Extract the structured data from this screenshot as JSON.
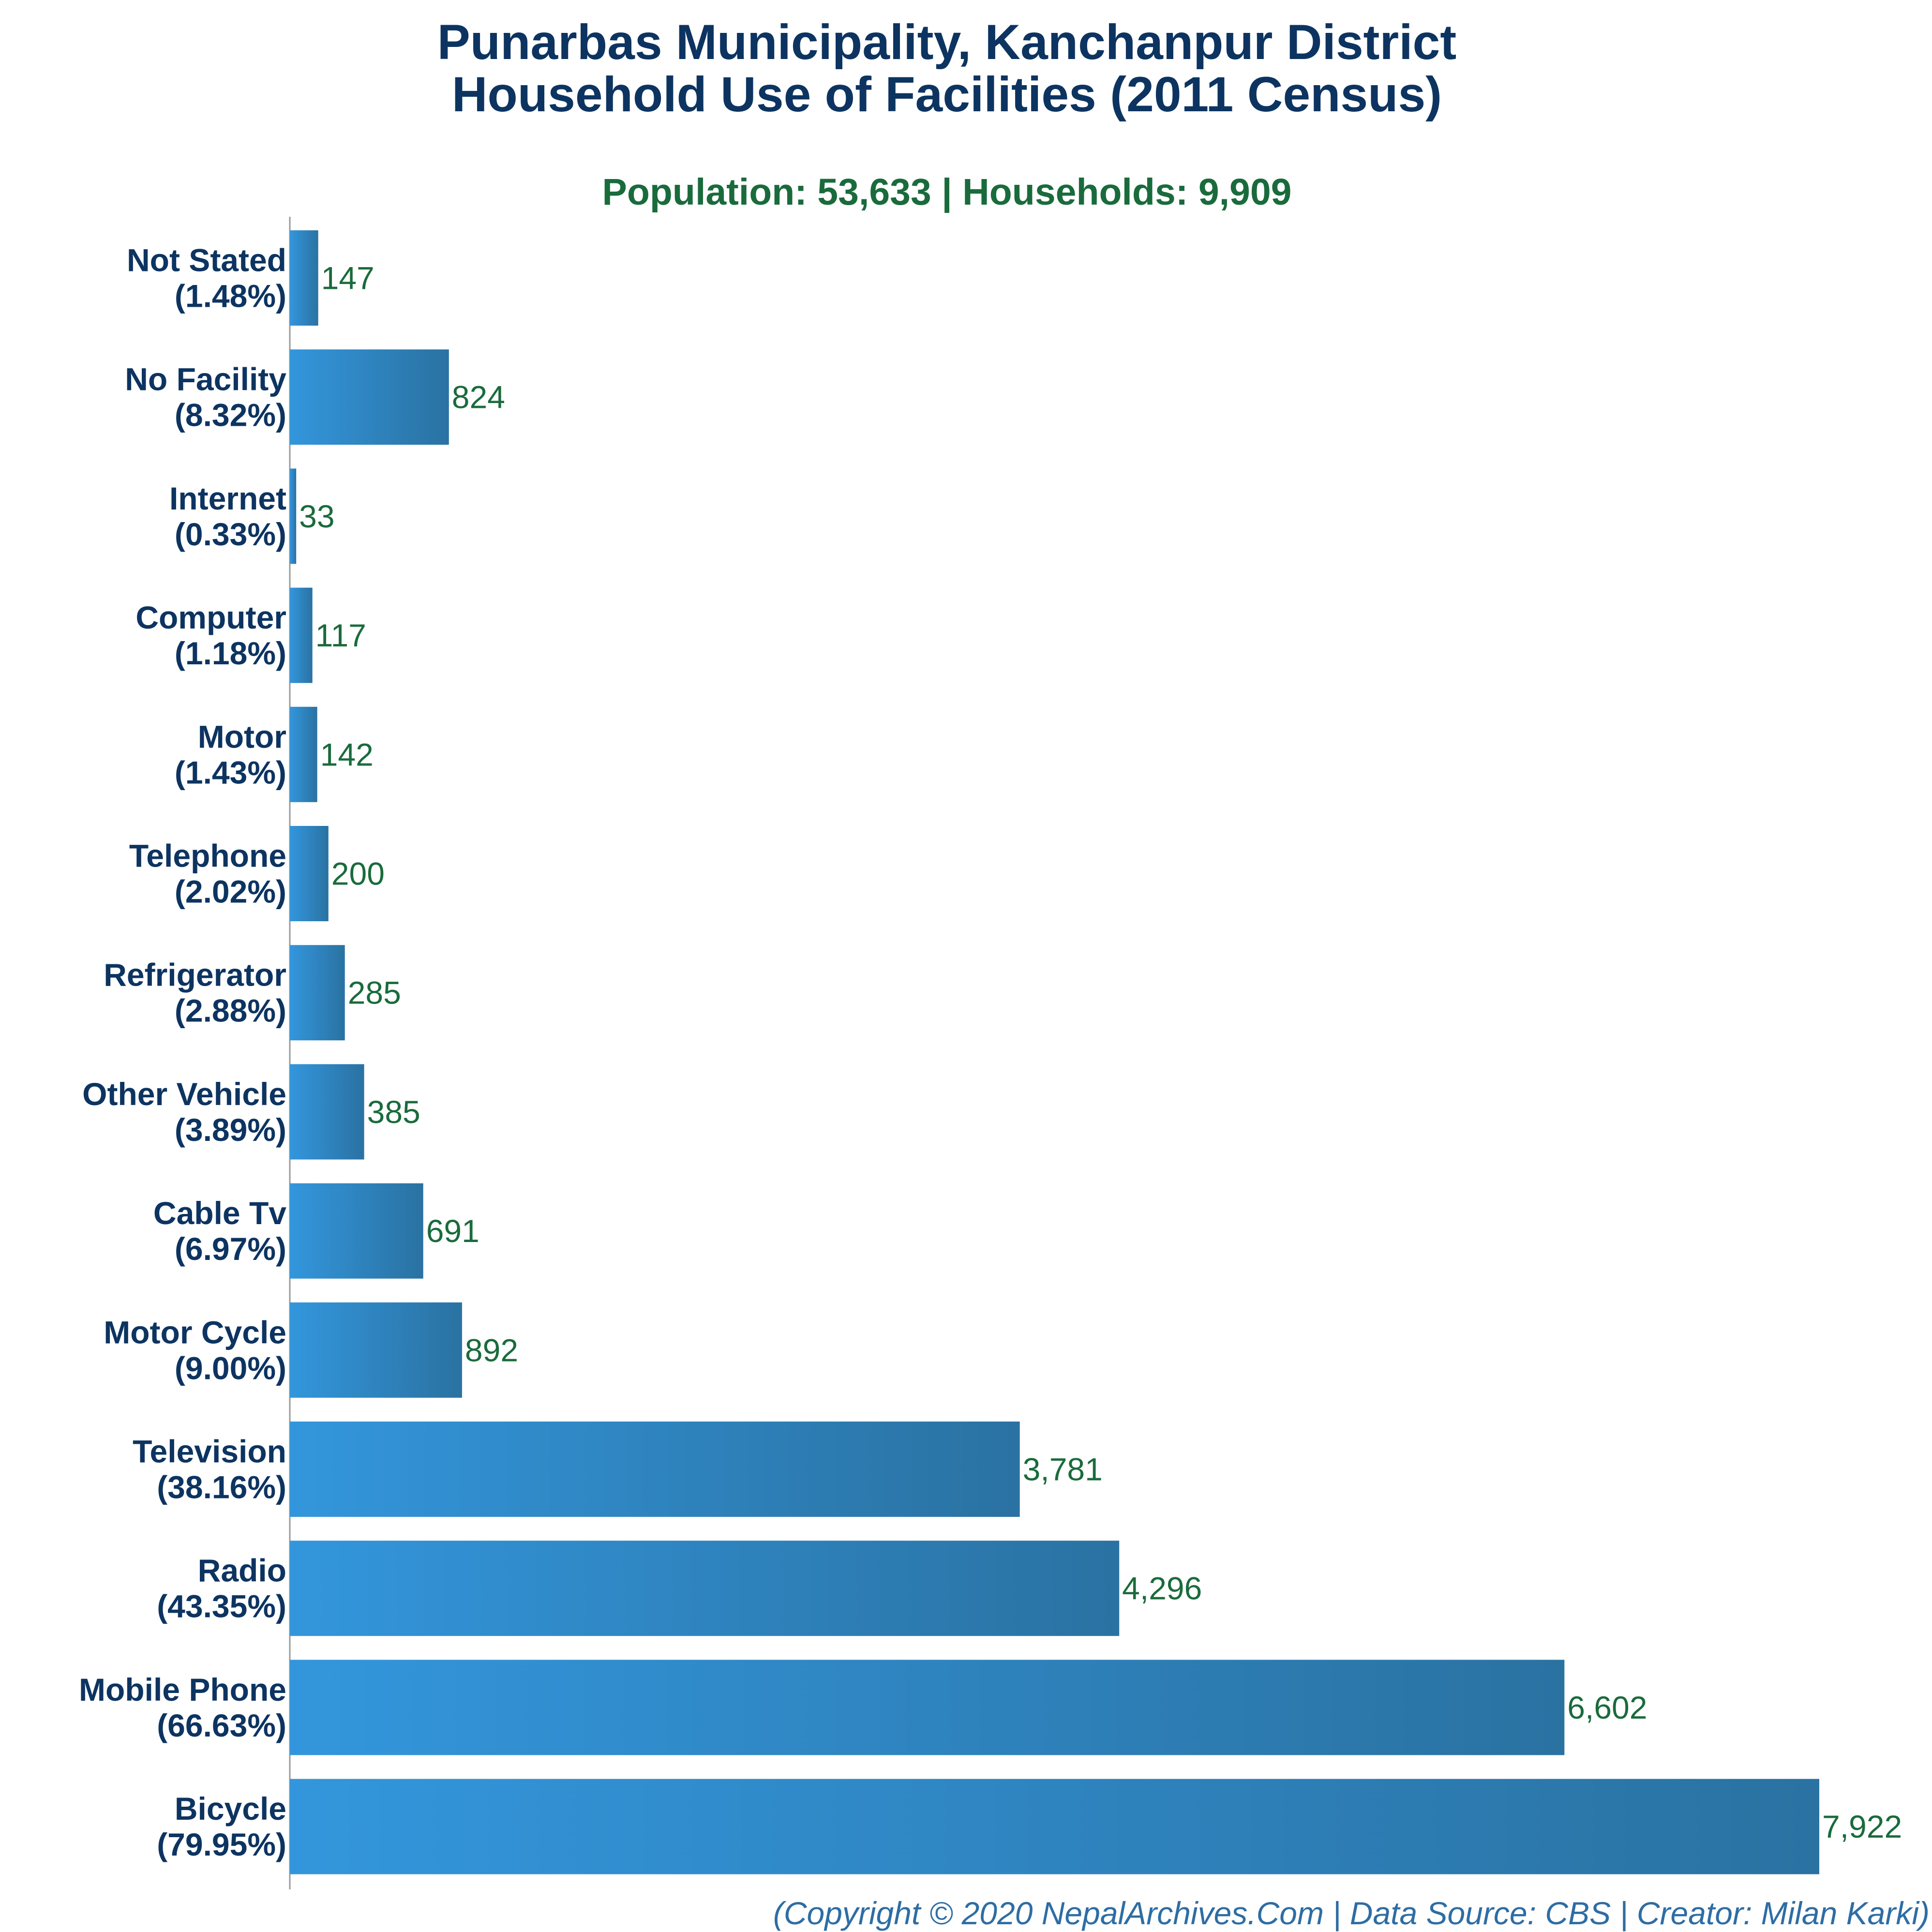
{
  "colors": {
    "title": "#0d3461",
    "subtitle": "#1a6b3c",
    "value_label": "#1a6b3c",
    "category_label": "#0d3461",
    "bar_start": "#3396dc",
    "bar_end": "#2a72a2",
    "axis": "#9a9a9a",
    "footer": "#2e6da4"
  },
  "chart_data": {
    "type": "bar",
    "orientation": "horizontal",
    "title": "Punarbas Municipality, Kanchanpur District",
    "title_line2": "Household Use of Facilities (2011 Census)",
    "subtitle": "Population: 53,633 | Households: 9,909",
    "categories": [
      "Not Stated",
      "No Facility",
      "Internet",
      "Computer",
      "Motor",
      "Telephone",
      "Refrigerator",
      "Other Vehicle",
      "Cable Tv",
      "Motor Cycle",
      "Television",
      "Radio",
      "Mobile Phone",
      "Bicycle"
    ],
    "percent_labels": [
      "(1.48%)",
      "(8.32%)",
      "(0.33%)",
      "(1.18%)",
      "(1.43%)",
      "(2.02%)",
      "(2.88%)",
      "(3.89%)",
      "(6.97%)",
      "(9.00%)",
      "(38.16%)",
      "(43.35%)",
      "(66.63%)",
      "(79.95%)"
    ],
    "values": [
      147,
      824,
      33,
      117,
      142,
      200,
      285,
      385,
      691,
      892,
      3781,
      4296,
      6602,
      7922
    ],
    "value_labels": [
      "147",
      "824",
      "33",
      "117",
      "142",
      "200",
      "285",
      "385",
      "691",
      "892",
      "3,781",
      "4,296",
      "6,602",
      "7,922"
    ],
    "xlim": [
      0,
      7922
    ],
    "grid": false,
    "legend": "none"
  },
  "footer": "(Copyright © 2020 NepalArchives.Com | Data Source: CBS | Creator: Milan Karki)"
}
